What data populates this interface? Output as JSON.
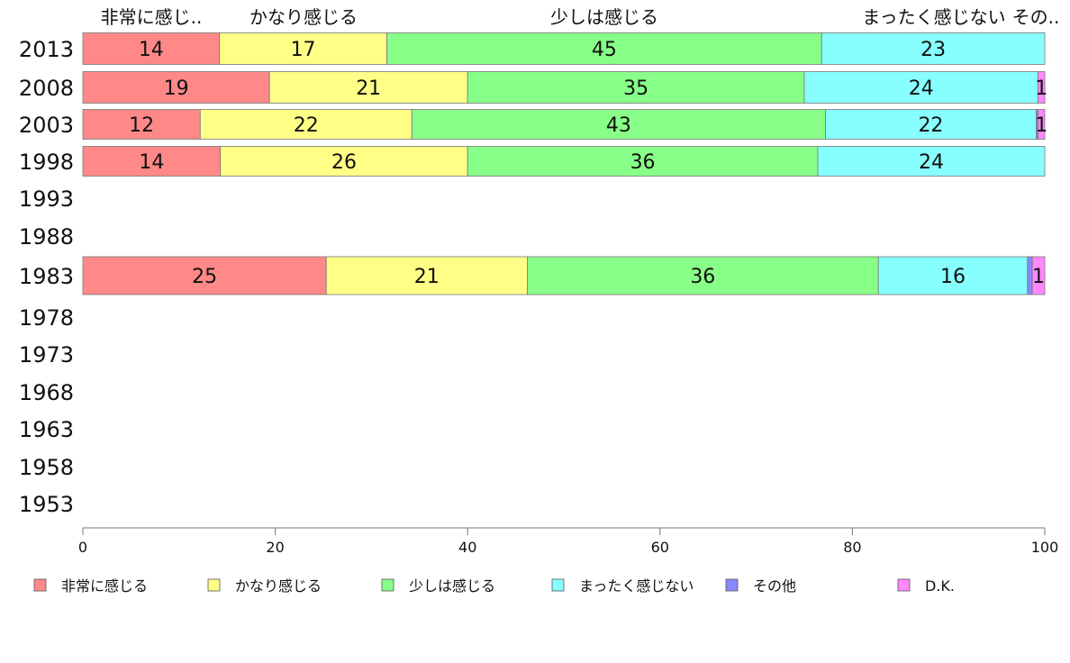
{
  "chart_data": {
    "type": "bar",
    "orientation": "horizontal",
    "stacked": true,
    "column_headers": [
      "非常に感じ..",
      "かなり感じる",
      "少しは感じる",
      "まったく感じない",
      "その.."
    ],
    "categories": [
      "2013",
      "2008",
      "2003",
      "1998",
      "1993",
      "1988",
      "1983",
      "1978",
      "1973",
      "1968",
      "1963",
      "1958",
      "1953"
    ],
    "series": [
      {
        "name": "非常に感じる",
        "color": "#ff8888",
        "values": [
          14.2,
          19.4,
          12.2,
          14.3,
          null,
          null,
          25.3,
          null,
          null,
          null,
          null,
          null,
          null
        ],
        "labels": [
          "14",
          "19",
          "12",
          "14",
          "",
          "",
          "25",
          "",
          "",
          "",
          "",
          "",
          ""
        ]
      },
      {
        "name": "かなり感じる",
        "color": "#ffff88",
        "values": [
          17.4,
          20.6,
          22.0,
          25.7,
          null,
          null,
          20.9,
          null,
          null,
          null,
          null,
          null,
          null
        ],
        "labels": [
          "17",
          "21",
          "22",
          "26",
          "",
          "",
          "21",
          "",
          "",
          "",
          "",
          "",
          ""
        ]
      },
      {
        "name": "少しは感じる",
        "color": "#88ff88",
        "values": [
          45.2,
          35.0,
          43.0,
          36.4,
          null,
          null,
          36.5,
          null,
          null,
          null,
          null,
          null,
          null
        ],
        "labels": [
          "45",
          "35",
          "43",
          "36",
          "",
          "",
          "36",
          "",
          "",
          "",
          "",
          "",
          ""
        ]
      },
      {
        "name": "まったく感じない",
        "color": "#88ffff",
        "values": [
          23.2,
          24.3,
          21.9,
          23.6,
          null,
          null,
          15.5,
          null,
          null,
          null,
          null,
          null,
          null
        ],
        "labels": [
          "23",
          "24",
          "22",
          "24",
          "",
          "",
          "16",
          "",
          "",
          "",
          "",
          "",
          ""
        ]
      },
      {
        "name": "その他",
        "color": "#8888ff",
        "values": [
          0,
          0,
          0.2,
          0,
          null,
          null,
          0.5,
          null,
          null,
          null,
          null,
          null,
          null
        ],
        "labels": [
          "",
          "",
          "",
          "",
          "",
          "",
          "",
          "",
          "",
          "",
          "",
          "",
          ""
        ]
      },
      {
        "name": "D.K.",
        "color": "#ff88ff",
        "values": [
          0,
          0.7,
          0.7,
          0,
          null,
          null,
          1.3,
          null,
          null,
          null,
          null,
          null,
          null
        ],
        "labels": [
          "",
          "1",
          "1",
          "",
          "",
          "",
          "1",
          "",
          "",
          "",
          "",
          "",
          ""
        ]
      }
    ],
    "xlim": [
      0,
      100
    ],
    "xticks": [
      "0",
      "20",
      "40",
      "60",
      "80",
      "100"
    ],
    "grid": false,
    "legend_position": "bottom"
  }
}
